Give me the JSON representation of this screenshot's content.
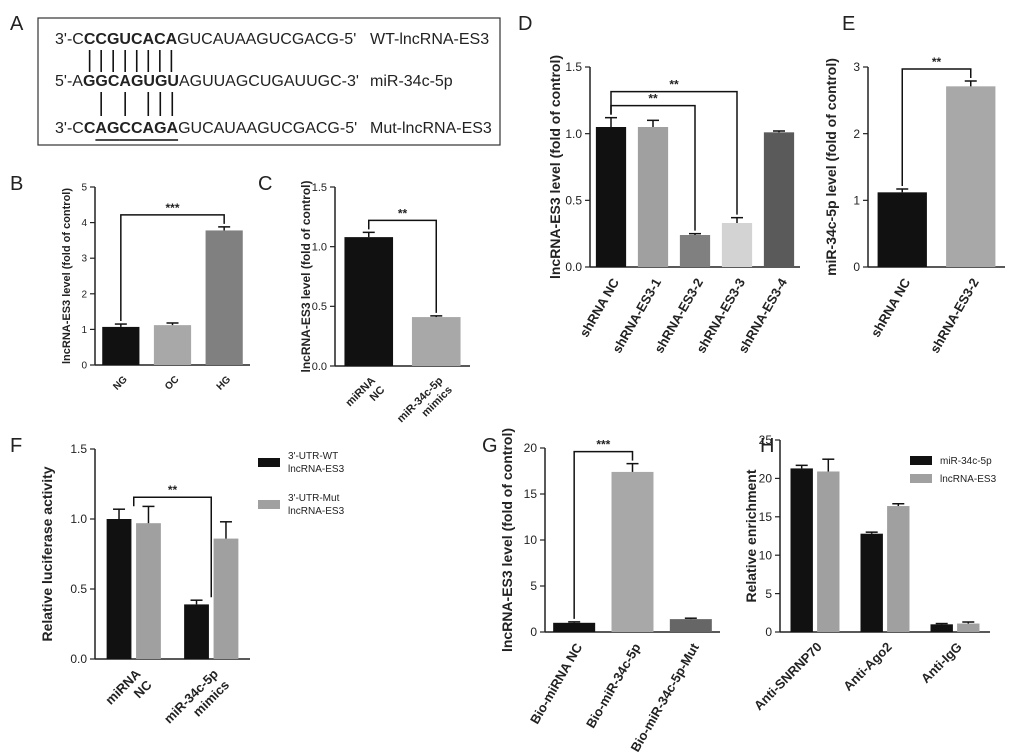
{
  "sequence_panel": {
    "label": "A",
    "rows": [
      {
        "prefix": "3'-C",
        "bold": "CCGUCACA",
        "suffix": "GUCAUAAGUCGACG-5'",
        "name": "WT-lncRNA-ES3"
      },
      {
        "prefix": "5'-A",
        "bold": "GGCAGUGU",
        "suffix": "AGUUAGCUGAUUGC-3'",
        "name": "miR-34c-5p"
      },
      {
        "prefix": "3'-C",
        "bold": "CAGCCAGA",
        "suffix": "GUCAUAAGUCGACG-5'",
        "name": "Mut-lncRNA-ES3"
      }
    ]
  },
  "chart_data": [
    {
      "type": "bar",
      "label": "B",
      "y_label": "lncRNA-ES3 level (fold of control)",
      "categories": [
        [
          "NG"
        ],
        [
          "OC"
        ],
        [
          "HG"
        ]
      ],
      "values": [
        1.07,
        1.12,
        3.78
      ],
      "errors": [
        0.08,
        0.06,
        0.1
      ],
      "colors": [
        "#111111",
        "#a8a8a8",
        "#808080"
      ],
      "ylim": [
        0,
        5
      ],
      "yticks": [
        0,
        1,
        2,
        3,
        4,
        5
      ],
      "significance": [
        {
          "from": 0,
          "to": 2,
          "label": "***"
        }
      ]
    },
    {
      "type": "bar",
      "label": "C",
      "y_label": "lncRNA-ES3 level (fold of control)",
      "categories": [
        [
          "miRNA",
          "NC"
        ],
        [
          "miR-34c-5p",
          "mimics"
        ]
      ],
      "values": [
        1.08,
        0.41
      ],
      "errors": [
        0.04,
        0.01
      ],
      "colors": [
        "#111111",
        "#a8a8a8"
      ],
      "ylim": [
        0,
        1.5
      ],
      "yticks": [
        {
          "value": 0,
          "label": "0.0"
        },
        0.5,
        {
          "value": 1,
          "label": "1.0"
        },
        1.5
      ],
      "significance": [
        {
          "from": 0,
          "to": 1,
          "label": "**"
        }
      ]
    },
    {
      "type": "bar",
      "label": "D",
      "y_label": "lncRNA-ES3 level (fold of control)",
      "categories": [
        [
          "shRNA NC"
        ],
        [
          "shRNA-ES3-1"
        ],
        [
          "shRNA-ES3-2"
        ],
        [
          "shRNA-ES3-3"
        ],
        [
          "shRNA-ES3-4"
        ]
      ],
      "values": [
        1.05,
        1.05,
        0.24,
        0.33,
        1.01
      ],
      "errors": [
        0.07,
        0.05,
        0.01,
        0.04,
        0.01
      ],
      "colors": [
        "#111111",
        "#a0a0a0",
        "#808080",
        "#d3d3d3",
        "#5a5a5a"
      ],
      "ylim": [
        0,
        1.5
      ],
      "yticks": [
        {
          "value": 0,
          "label": "0.0"
        },
        0.5,
        {
          "value": 1,
          "label": "1.0"
        },
        1.5
      ],
      "significance": [
        {
          "from": 0,
          "to": 2,
          "label": "**"
        },
        {
          "from": 0,
          "to": 3,
          "label": "**"
        }
      ]
    },
    {
      "type": "bar",
      "label": "E",
      "y_label": "miR-34c-5p level (fold of control)",
      "categories": [
        [
          "shRNA NC"
        ],
        [
          "shRNA-ES3-2"
        ]
      ],
      "values": [
        1.12,
        2.71
      ],
      "errors": [
        0.05,
        0.08
      ],
      "colors": [
        "#111111",
        "#a8a8a8"
      ],
      "ylim": [
        0,
        3
      ],
      "yticks": [
        0,
        1,
        2,
        3
      ],
      "significance": [
        {
          "from": 0,
          "to": 1,
          "label": "**"
        }
      ]
    },
    {
      "type": "grouped_bar",
      "label": "F",
      "y_label": "Relative luciferase activity",
      "categories": [
        [
          "miRNA",
          "NC"
        ],
        [
          "miR-34c-5p",
          "mimics"
        ]
      ],
      "series": [
        {
          "name": [
            "3'-UTR-WT",
            "lncRNA-ES3"
          ],
          "color": "#111111",
          "values": [
            1.0,
            0.39
          ],
          "errors": [
            0.07,
            0.03
          ]
        },
        {
          "name": [
            "3'-UTR-Mut",
            "lncRNA-ES3"
          ],
          "color": "#a0a0a0",
          "values": [
            0.97,
            0.86
          ],
          "errors": [
            0.12,
            0.12
          ]
        }
      ],
      "ylim": [
        0,
        1.5
      ],
      "yticks": [
        {
          "value": 0,
          "label": "0.0"
        },
        0.5,
        {
          "value": 1,
          "label": "1.0"
        },
        1.5
      ],
      "significance": [
        {
          "from": 0,
          "to": 1,
          "label": "**"
        }
      ]
    },
    {
      "type": "bar",
      "label": "G",
      "y_label": "lncRNA-ES3 level (fold of control)",
      "categories": [
        [
          "Bio-miRNA NC"
        ],
        [
          "Bio-miR-34c-5p"
        ],
        [
          "Bio-miR-34c-5p-Mut"
        ]
      ],
      "values": [
        1.0,
        17.4,
        1.4
      ],
      "errors": [
        0.1,
        0.9,
        0.1
      ],
      "colors": [
        "#111111",
        "#a8a8a8",
        "#666666"
      ],
      "ylim": [
        0,
        20
      ],
      "yticks": [
        0,
        5,
        10,
        15,
        20
      ],
      "significance": [
        {
          "from": 0,
          "to": 1,
          "label": "***"
        }
      ]
    },
    {
      "type": "grouped_bar",
      "label": "H",
      "y_label": "Relative enrichment",
      "categories": [
        [
          "Anti-SNRNP70"
        ],
        [
          "Anti-Ago2"
        ],
        [
          "Anti-IgG"
        ]
      ],
      "series": [
        {
          "name": [
            "miR-34c-5p"
          ],
          "color": "#111111",
          "values": [
            21.3,
            12.8,
            1.0
          ],
          "errors": [
            0.4,
            0.2,
            0.1
          ]
        },
        {
          "name": [
            "lncRNA-ES3"
          ],
          "color": "#a0a0a0",
          "values": [
            20.9,
            16.4,
            1.1
          ],
          "errors": [
            1.6,
            0.3,
            0.2
          ]
        }
      ],
      "ylim": [
        0,
        25
      ],
      "yticks": [
        0,
        5,
        10,
        15,
        20,
        25
      ],
      "significance": []
    }
  ]
}
